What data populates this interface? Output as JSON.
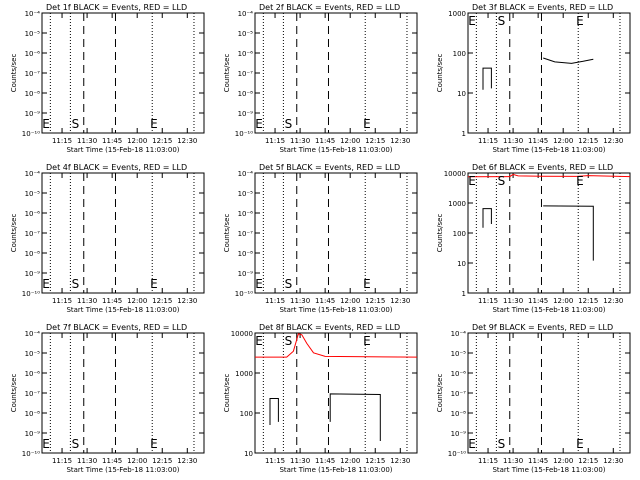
{
  "time_ticks": [
    "11:15",
    "11:30",
    "11:45",
    "12:00",
    "12:15",
    "12:30"
  ],
  "ylabel": "Counts/sec",
  "xlabel": "Start Time (15-Feb-18 11:03:00)",
  "start_marker": "S",
  "end_marker": "E",
  "colors": {
    "events": "#000000",
    "lld": "#ff0000"
  },
  "chart_data": [
    {
      "type": "line",
      "title": "Det 1f BLACK = Events, RED = LLD",
      "scale": "log",
      "ylim": [
        1e-10,
        0.0001
      ],
      "yticks": [
        1e-10,
        1e-09,
        1e-08,
        1e-07,
        1e-06,
        1e-05,
        0.0001
      ],
      "yticklabels": [
        "10⁻¹⁰",
        "10⁻⁹",
        "10⁻⁸",
        "10⁻⁷",
        "10⁻⁶",
        "10⁻⁵",
        "10⁻⁴"
      ],
      "xlim": [
        "11:03",
        "12:40"
      ],
      "dotted": [
        "11:08",
        "11:20",
        "12:09",
        "12:34"
      ],
      "dashed": [
        "11:28",
        "11:47"
      ],
      "s_marker": "11:23",
      "e_marker": "12:10",
      "series": []
    },
    {
      "type": "line",
      "title": "Det 2f BLACK = Events, RED = LLD",
      "scale": "log",
      "ylim": [
        1e-10,
        0.0001
      ],
      "yticks": [
        1e-10,
        1e-09,
        1e-08,
        1e-07,
        1e-06,
        1e-05,
        0.0001
      ],
      "yticklabels": [
        "10⁻¹⁰",
        "10⁻⁹",
        "10⁻⁸",
        "10⁻⁷",
        "10⁻⁶",
        "10⁻⁵",
        "10⁻⁴"
      ],
      "xlim": [
        "11:03",
        "12:40"
      ],
      "dotted": [
        "11:08",
        "11:20",
        "12:09",
        "12:34"
      ],
      "dashed": [
        "11:28",
        "11:47"
      ],
      "s_marker": "11:23",
      "e_marker": "12:10",
      "series": []
    },
    {
      "type": "line",
      "title": "Det 3f BLACK = Events, RED = LLD",
      "scale": "log",
      "ylim": [
        1,
        1000
      ],
      "yticks": [
        1,
        10,
        100,
        1000
      ],
      "yticklabels": [
        "1",
        "10",
        "100",
        "1000"
      ],
      "xlim": [
        "11:03",
        "12:40"
      ],
      "dotted": [
        "11:08",
        "11:20",
        "12:09",
        "12:34"
      ],
      "dashed": [
        "11:28",
        "11:47"
      ],
      "s_marker": "11:23",
      "e_marker": "12:10",
      "series": [
        {
          "color": "black",
          "points": [
            [
              "11:12",
              12
            ],
            [
              "11:12",
              42
            ],
            [
              "11:17",
              42
            ],
            [
              "11:17",
              13
            ]
          ]
        },
        {
          "color": "black",
          "points": [
            [
              "11:48",
              75
            ],
            [
              "11:55",
              60
            ],
            [
              "12:05",
              55
            ],
            [
              "12:12",
              62
            ],
            [
              "12:18",
              70
            ]
          ]
        }
      ]
    },
    {
      "type": "line",
      "title": "Det 4f BLACK = Events, RED = LLD",
      "scale": "log",
      "ylim": [
        1e-10,
        0.0001
      ],
      "yticks": [
        1e-10,
        1e-09,
        1e-08,
        1e-07,
        1e-06,
        1e-05,
        0.0001
      ],
      "yticklabels": [
        "10⁻¹⁰",
        "10⁻⁹",
        "10⁻⁸",
        "10⁻⁷",
        "10⁻⁶",
        "10⁻⁵",
        "10⁻⁴"
      ],
      "xlim": [
        "11:03",
        "12:40"
      ],
      "dotted": [
        "11:08",
        "11:20",
        "12:09",
        "12:34"
      ],
      "dashed": [
        "11:28",
        "11:47"
      ],
      "s_marker": "11:23",
      "e_marker": "12:10",
      "series": []
    },
    {
      "type": "line",
      "title": "Det 5f BLACK = Events, RED = LLD",
      "scale": "log",
      "ylim": [
        1e-10,
        0.0001
      ],
      "yticks": [
        1e-10,
        1e-09,
        1e-08,
        1e-07,
        1e-06,
        1e-05,
        0.0001
      ],
      "yticklabels": [
        "10⁻¹⁰",
        "10⁻⁹",
        "10⁻⁸",
        "10⁻⁷",
        "10⁻⁶",
        "10⁻⁵",
        "10⁻⁴"
      ],
      "xlim": [
        "11:03",
        "12:40"
      ],
      "dotted": [
        "11:08",
        "11:20",
        "12:09",
        "12:34"
      ],
      "dashed": [
        "11:28",
        "11:47"
      ],
      "s_marker": "11:23",
      "e_marker": "12:10",
      "series": []
    },
    {
      "type": "line",
      "title": "Det 6f BLACK = Events, RED = LLD",
      "scale": "log",
      "ylim": [
        1,
        10000
      ],
      "yticks": [
        1,
        10,
        100,
        1000,
        10000
      ],
      "yticklabels": [
        "1",
        "10",
        "100",
        "1000",
        "10000"
      ],
      "xlim": [
        "11:03",
        "12:40"
      ],
      "dotted": [
        "11:08",
        "11:20",
        "12:09",
        "12:34"
      ],
      "dashed": [
        "11:28",
        "11:47"
      ],
      "s_marker": "11:23",
      "e_marker": "12:10",
      "series": [
        {
          "color": "red",
          "points": [
            [
              "11:03",
              7500
            ],
            [
              "11:28",
              7600
            ],
            [
              "11:30",
              9000
            ],
            [
              "11:33",
              8000
            ],
            [
              "11:47",
              7800
            ],
            [
              "12:08",
              7700
            ],
            [
              "12:15",
              8200
            ],
            [
              "12:40",
              7600
            ]
          ]
        },
        {
          "color": "black",
          "points": [
            [
              "11:12",
              150
            ],
            [
              "11:12",
              650
            ],
            [
              "11:17",
              650
            ],
            [
              "11:17",
              200
            ]
          ]
        },
        {
          "color": "black",
          "points": [
            [
              "11:48",
              800
            ],
            [
              "12:18",
              780
            ],
            [
              "12:18",
              12
            ]
          ]
        }
      ]
    },
    {
      "type": "line",
      "title": "Det 7f BLACK = Events, RED = LLD",
      "scale": "log",
      "ylim": [
        1e-10,
        0.0001
      ],
      "yticks": [
        1e-10,
        1e-09,
        1e-08,
        1e-07,
        1e-06,
        1e-05,
        0.0001
      ],
      "yticklabels": [
        "10⁻¹⁰",
        "10⁻⁹",
        "10⁻⁸",
        "10⁻⁷",
        "10⁻⁶",
        "10⁻⁵",
        "10⁻⁴"
      ],
      "xlim": [
        "11:03",
        "12:40"
      ],
      "dotted": [
        "11:08",
        "11:20",
        "12:09",
        "12:34"
      ],
      "dashed": [
        "11:28",
        "11:47"
      ],
      "s_marker": "11:23",
      "e_marker": "12:10",
      "series": []
    },
    {
      "type": "line",
      "title": "Det 8f BLACK = Events, RED = LLD",
      "scale": "log",
      "ylim": [
        10,
        10000
      ],
      "yticks": [
        10,
        100,
        1000,
        10000
      ],
      "yticklabels": [
        "10",
        "100",
        "1000",
        "10000"
      ],
      "xlim": [
        "11:03",
        "12:40"
      ],
      "dotted": [
        "11:08",
        "11:20",
        "12:09",
        "12:34"
      ],
      "dashed": [
        "11:28",
        "11:47"
      ],
      "s_marker": "11:23",
      "e_marker": "12:10",
      "series": [
        {
          "color": "red",
          "points": [
            [
              "11:03",
              2500
            ],
            [
              "11:22",
              2500
            ],
            [
              "11:26",
              3500
            ],
            [
              "11:29",
              9500
            ],
            [
              "11:31",
              9000
            ],
            [
              "11:34",
              5500
            ],
            [
              "11:38",
              3200
            ],
            [
              "11:45",
              2600
            ],
            [
              "12:40",
              2500
            ]
          ]
        },
        {
          "color": "black",
          "points": [
            [
              "11:12",
              50
            ],
            [
              "11:12",
              230
            ],
            [
              "11:17",
              230
            ],
            [
              "11:17",
              60
            ]
          ]
        },
        {
          "color": "black",
          "points": [
            [
              "11:48",
              60
            ],
            [
              "11:48",
              300
            ],
            [
              "12:18",
              290
            ],
            [
              "12:18",
              20
            ]
          ]
        }
      ]
    },
    {
      "type": "line",
      "title": "Det 9f BLACK = Events, RED = LLD",
      "scale": "log",
      "ylim": [
        1e-10,
        0.0001
      ],
      "yticks": [
        1e-10,
        1e-09,
        1e-08,
        1e-07,
        1e-06,
        1e-05,
        0.0001
      ],
      "yticklabels": [
        "10⁻¹⁰",
        "10⁻⁹",
        "10⁻⁸",
        "10⁻⁷",
        "10⁻⁶",
        "10⁻⁵",
        "10⁻⁴"
      ],
      "xlim": [
        "11:03",
        "12:40"
      ],
      "dotted": [
        "11:08",
        "11:20",
        "12:09",
        "12:34"
      ],
      "dashed": [
        "11:28",
        "11:47"
      ],
      "s_marker": "11:23",
      "e_marker": "12:10",
      "series": []
    }
  ]
}
